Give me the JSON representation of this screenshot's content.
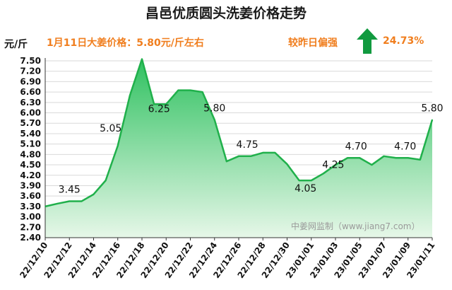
{
  "header": {
    "title": "昌邑优质圆头洗姜价格走势",
    "unit": "元/斤",
    "price_note": "1月11日大姜价格：5.80元/斤左右",
    "trend_label": "较昨日偏强",
    "trend_percent": "24.73%",
    "trend_direction": "up",
    "arrow_color": "#119a3f"
  },
  "watermark": "中姜网监制（www.jiang7.com）",
  "colors": {
    "line": "#20b04b",
    "fill_top": "#2fc160",
    "fill_bottom": "#e6f7e8",
    "grid": "#d9d9d9",
    "axis": "#333333"
  },
  "chart_data": {
    "type": "area",
    "title": "昌邑优质圆头洗姜价格走势",
    "ylabel": "元/斤",
    "xlabel": "",
    "ylim": [
      2.4,
      7.5
    ],
    "yticks": [
      "2.40",
      "2.70",
      "3.00",
      "3.30",
      "3.60",
      "3.90",
      "4.20",
      "4.50",
      "4.80",
      "5.10",
      "5.40",
      "5.70",
      "6.00",
      "6.30",
      "6.60",
      "6.90",
      "7.20",
      "7.50"
    ],
    "grid": true,
    "x": [
      "22/12/10",
      "22/12/11",
      "22/12/12",
      "22/12/13",
      "22/12/14",
      "22/12/15",
      "22/12/16",
      "22/12/17",
      "22/12/18",
      "22/12/19",
      "22/12/20",
      "22/12/21",
      "22/12/22",
      "22/12/23",
      "22/12/24",
      "22/12/25",
      "22/12/26",
      "22/12/27",
      "22/12/28",
      "22/12/29",
      "22/12/30",
      "22/12/31",
      "23/01/01",
      "23/01/02",
      "23/01/03",
      "23/01/04",
      "23/01/05",
      "23/01/06",
      "23/01/07",
      "23/01/08",
      "23/01/09",
      "23/01/10",
      "23/01/11"
    ],
    "xtick_labels": [
      "22/12/10",
      "22/12/12",
      "22/12/14",
      "22/12/16",
      "22/12/18",
      "22/12/20",
      "22/12/22",
      "22/12/24",
      "22/12/26",
      "22/12/28",
      "22/12/30",
      "23/01/01",
      "23/01/03",
      "23/01/05",
      "23/01/07",
      "23/01/09",
      "23/01/11"
    ],
    "values": [
      3.3,
      3.38,
      3.45,
      3.45,
      3.65,
      4.05,
      5.05,
      6.5,
      7.55,
      6.25,
      6.25,
      6.65,
      6.65,
      6.6,
      5.8,
      4.6,
      4.75,
      4.75,
      4.85,
      4.85,
      4.52,
      4.05,
      4.05,
      4.25,
      4.5,
      4.7,
      4.7,
      4.5,
      4.75,
      4.7,
      4.7,
      4.65,
      5.8
    ],
    "data_labels": [
      {
        "x": "22/12/12",
        "text": "3.45"
      },
      {
        "x": "22/12/16",
        "text": "5.05"
      },
      {
        "x": "22/12/20",
        "text": "6.25"
      },
      {
        "x": "22/12/24",
        "text": "5.80"
      },
      {
        "x": "22/12/27",
        "text": "4.75"
      },
      {
        "x": "23/01/01",
        "text": "4.05"
      },
      {
        "x": "23/01/02",
        "text": "4.25"
      },
      {
        "x": "23/01/05",
        "text": "4.70"
      },
      {
        "x": "23/01/09",
        "text": "4.70"
      },
      {
        "x": "23/01/11",
        "text": "5.80"
      }
    ]
  }
}
